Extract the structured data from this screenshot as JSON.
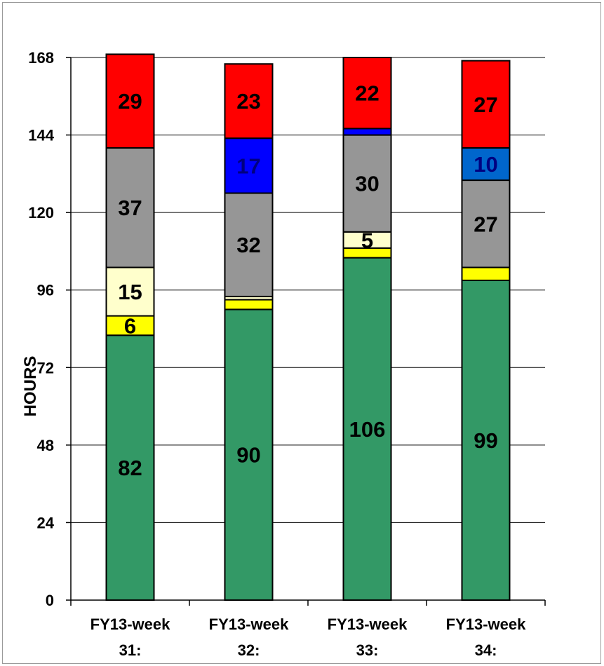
{
  "chart_data": {
    "type": "bar",
    "stacked": true,
    "title": "",
    "ylabel": "HOURS",
    "xlabel": "",
    "ylim": [
      0,
      168
    ],
    "yticks": [
      0,
      24,
      48,
      72,
      96,
      120,
      144,
      168
    ],
    "grid": true,
    "categories": [
      "FY13-week 31:",
      "FY13-week 32:",
      "FY13-week 33:",
      "FY13-week 34:"
    ],
    "category_lines": [
      [
        "FY13-week",
        "31:"
      ],
      [
        "FY13-week",
        "32:"
      ],
      [
        "FY13-week",
        "33:"
      ],
      [
        "FY13-week",
        "34:"
      ]
    ],
    "series": [
      {
        "color": "#339966",
        "values": [
          82,
          90,
          106,
          99
        ],
        "labels": [
          "82",
          "90",
          "106",
          "99"
        ],
        "label_color": "#000000"
      },
      {
        "color": "#ffff00",
        "values": [
          6,
          3,
          3,
          4
        ],
        "labels": [
          "6",
          "",
          "",
          ""
        ],
        "label_color": "#000000"
      },
      {
        "color": "#ffffcc",
        "values": [
          15,
          1,
          5,
          0
        ],
        "labels": [
          "15",
          "",
          "5",
          ""
        ],
        "label_color": "#000000"
      },
      {
        "color": "#969696",
        "values": [
          37,
          32,
          30,
          27
        ],
        "labels": [
          "37",
          "32",
          "30",
          "27"
        ],
        "label_color": "#000000"
      },
      {
        "color": "#0000ff",
        "values": [
          0,
          17,
          2,
          10
        ],
        "labels": [
          "",
          "17",
          "",
          ""
        ],
        "label_color": "#000080",
        "label_weight": "normal"
      },
      {
        "color": "#ff0000",
        "values": [
          29,
          23,
          22,
          27
        ],
        "labels": [
          "29",
          "23",
          "22",
          "27"
        ],
        "label_color": "#000000"
      }
    ],
    "series_overrides": {
      "4-3": {
        "color": "#0066cc",
        "label": "10"
      }
    }
  }
}
